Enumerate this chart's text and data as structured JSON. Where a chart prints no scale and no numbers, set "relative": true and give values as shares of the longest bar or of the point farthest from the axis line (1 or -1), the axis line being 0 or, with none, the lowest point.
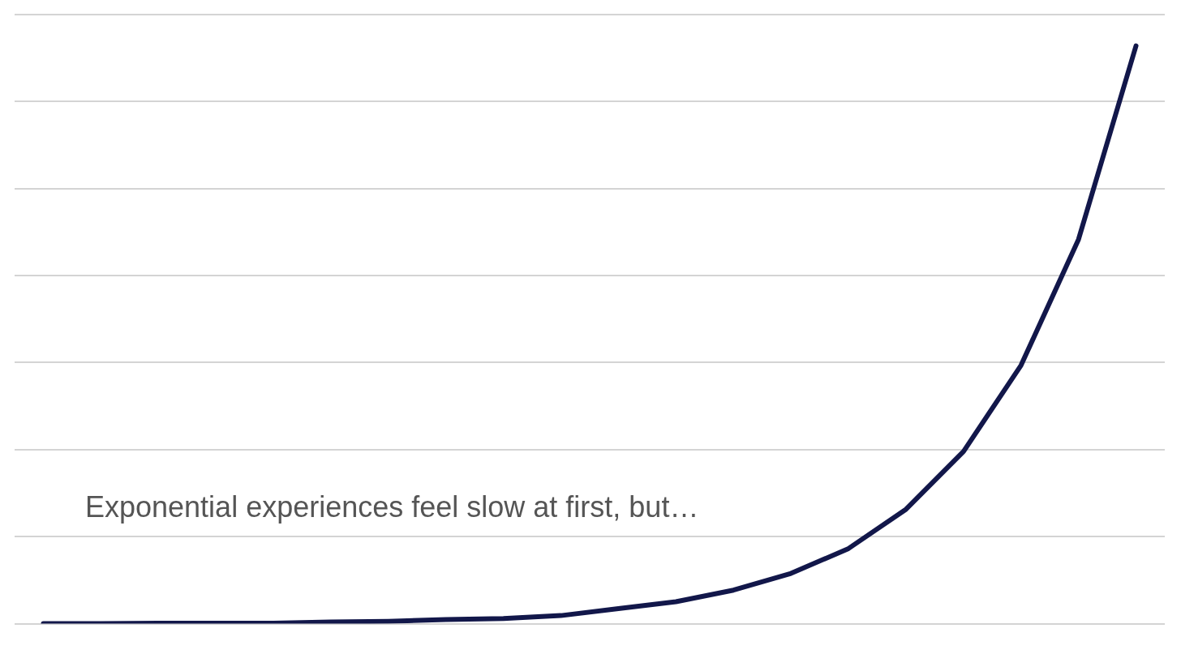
{
  "chart_data": {
    "type": "line",
    "relative": true,
    "categories": [
      null,
      null,
      null,
      null,
      null,
      null,
      null,
      null,
      null,
      null,
      null,
      null,
      null,
      null,
      null,
      null,
      null,
      null,
      null,
      null
    ],
    "series": [
      {
        "color": "#12174a",
        "values": [
          0,
          0,
          0.001,
          0.001,
          0.001,
          0.003,
          0.004,
          0.007,
          0.009,
          0.014,
          0.026,
          0.038,
          0.058,
          0.087,
          0.13,
          0.198,
          0.298,
          0.447,
          0.665,
          1
        ]
      }
    ],
    "annotations": [
      "Exponential experiences feel slow at first, but…"
    ],
    "grid": "y",
    "legend": false,
    "marker": "none",
    "line_style": "solid"
  }
}
